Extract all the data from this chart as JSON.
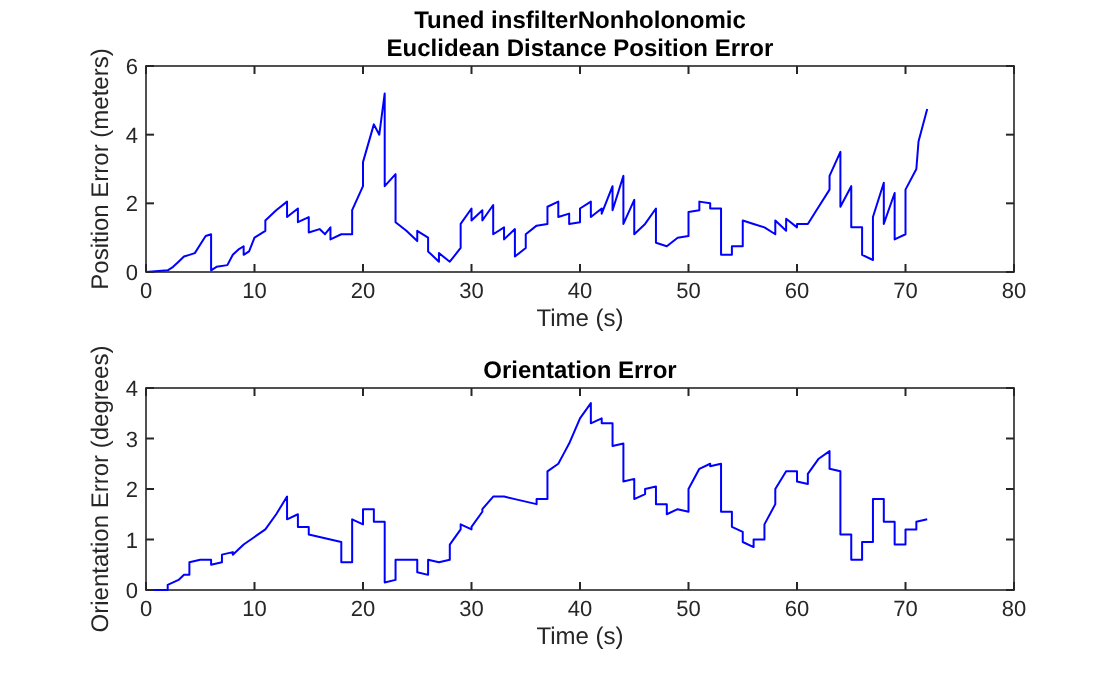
{
  "chart_data": [
    {
      "type": "line",
      "title": "Tuned insfilterNonholonomic\nEuclidean Distance Position Error",
      "xlabel": "Time (s)",
      "ylabel": "Position Error (meters)",
      "xlim": [
        0,
        80
      ],
      "xticks": [
        0,
        10,
        20,
        30,
        40,
        50,
        60,
        70,
        80
      ],
      "ylim": [
        0,
        6
      ],
      "yticks": [
        0,
        2,
        4,
        6
      ],
      "grid": false,
      "legend": false,
      "series": [
        {
          "color": "#0000ff",
          "x": [
            0,
            2,
            2.5,
            3,
            3.5,
            4,
            4.5,
            5,
            5.5,
            6,
            6,
            6.5,
            7.5,
            8,
            8.5,
            9,
            9,
            9.5,
            10,
            11,
            11,
            12,
            13,
            13,
            14,
            14,
            15,
            15,
            16,
            16.5,
            17,
            17,
            18,
            19,
            19,
            20,
            20,
            21,
            21.5,
            22,
            22,
            23,
            23,
            24,
            25,
            25,
            26,
            26,
            27,
            27,
            28,
            29,
            29,
            30,
            30,
            31,
            31,
            32,
            32,
            33,
            33,
            34,
            34,
            35,
            35,
            36,
            37,
            37,
            38,
            38,
            39,
            39,
            40,
            40,
            41,
            41,
            42,
            42,
            43,
            43,
            44,
            44,
            45,
            45,
            46,
            47,
            47,
            48,
            49,
            50,
            50,
            51,
            51,
            52,
            52,
            53,
            53,
            54,
            54,
            55,
            55,
            56,
            57,
            58,
            58,
            59,
            59,
            60,
            60,
            61,
            62,
            63,
            63,
            64,
            64,
            65,
            65,
            66,
            66,
            67,
            67,
            68,
            68,
            69,
            69,
            70,
            70,
            71,
            71.2,
            72
          ],
          "values": [
            0,
            0.05,
            0.15,
            0.3,
            0.45,
            0.5,
            0.55,
            0.8,
            1.05,
            1.1,
            0.05,
            0.15,
            0.2,
            0.5,
            0.65,
            0.75,
            0.5,
            0.6,
            1.0,
            1.2,
            1.5,
            1.8,
            2.05,
            1.6,
            1.85,
            1.45,
            1.6,
            1.15,
            1.25,
            1.1,
            1.3,
            0.95,
            1.1,
            1.1,
            1.8,
            2.5,
            3.2,
            4.3,
            4.0,
            5.2,
            2.5,
            2.85,
            1.45,
            1.2,
            0.9,
            1.2,
            1.0,
            0.6,
            0.3,
            0.55,
            0.3,
            0.7,
            1.4,
            1.85,
            1.5,
            1.8,
            1.5,
            1.95,
            1.1,
            1.3,
            0.95,
            1.25,
            0.45,
            0.7,
            1.1,
            1.35,
            1.4,
            1.9,
            2.05,
            1.6,
            1.7,
            1.4,
            1.45,
            1.85,
            2.05,
            1.6,
            1.85,
            1.7,
            2.5,
            1.8,
            2.8,
            1.4,
            2.1,
            1.1,
            1.4,
            1.85,
            0.85,
            0.75,
            1.0,
            1.05,
            1.75,
            1.8,
            2.05,
            2.0,
            1.85,
            1.85,
            0.5,
            0.5,
            0.75,
            0.75,
            1.5,
            1.4,
            1.3,
            1.1,
            1.5,
            1.2,
            1.55,
            1.3,
            1.4,
            1.4,
            1.9,
            2.4,
            2.8,
            3.5,
            1.9,
            2.5,
            1.3,
            1.3,
            0.5,
            0.35,
            1.6,
            2.6,
            1.4,
            2.3,
            0.95,
            1.1,
            2.4,
            3.0,
            3.8,
            4.75
          ]
        }
      ]
    },
    {
      "type": "line",
      "title": "Orientation Error",
      "xlabel": "Time (s)",
      "ylabel": "Orientation Error (degrees)",
      "xlim": [
        0,
        80
      ],
      "xticks": [
        0,
        10,
        20,
        30,
        40,
        50,
        60,
        70,
        80
      ],
      "ylim": [
        0,
        4
      ],
      "yticks": [
        0,
        1,
        2,
        3,
        4
      ],
      "grid": false,
      "legend": false,
      "series": [
        {
          "color": "#0000ff",
          "x": [
            0,
            2,
            2,
            3,
            3.5,
            4,
            4,
            5,
            6,
            6,
            7,
            7,
            8,
            8,
            9,
            10,
            11,
            12,
            13,
            13,
            14,
            14,
            15,
            15,
            16,
            17,
            18,
            18,
            19,
            19,
            20,
            20,
            21,
            21,
            22,
            22,
            23,
            23,
            24,
            25,
            25,
            26,
            26,
            27,
            28,
            28,
            29,
            29,
            30,
            30,
            31,
            31,
            32,
            33,
            34,
            35,
            36,
            36,
            37,
            37,
            38,
            38.5,
            39,
            40,
            41,
            41,
            42,
            42,
            43,
            43,
            44,
            44,
            45,
            45,
            46,
            46,
            47,
            47,
            48,
            48,
            49,
            50,
            50,
            51,
            52,
            52,
            53,
            53,
            54,
            54,
            55,
            55,
            56,
            56,
            57,
            57,
            58,
            58,
            59,
            60,
            60,
            61,
            61,
            62,
            63,
            63,
            64,
            64,
            65,
            65,
            66,
            66,
            67,
            67,
            68,
            68,
            69,
            69,
            70,
            70,
            71,
            71,
            72
          ],
          "values": [
            0,
            0,
            0.1,
            0.2,
            0.3,
            0.3,
            0.55,
            0.6,
            0.6,
            0.5,
            0.55,
            0.7,
            0.75,
            0.7,
            0.9,
            1.05,
            1.2,
            1.5,
            1.85,
            1.4,
            1.5,
            1.25,
            1.25,
            1.1,
            1.05,
            1.0,
            0.95,
            0.55,
            0.55,
            1.4,
            1.3,
            1.6,
            1.6,
            1.35,
            1.35,
            0.15,
            0.2,
            0.6,
            0.6,
            0.6,
            0.35,
            0.3,
            0.6,
            0.55,
            0.6,
            0.9,
            1.2,
            1.3,
            1.2,
            1.25,
            1.55,
            1.6,
            1.85,
            1.85,
            1.8,
            1.75,
            1.7,
            1.8,
            1.8,
            2.35,
            2.5,
            2.7,
            2.9,
            3.4,
            3.7,
            3.3,
            3.4,
            3.3,
            3.3,
            2.85,
            2.9,
            2.15,
            2.2,
            1.8,
            1.9,
            2.0,
            2.05,
            1.7,
            1.7,
            1.5,
            1.6,
            1.55,
            2.0,
            2.4,
            2.5,
            2.45,
            2.5,
            1.55,
            1.55,
            1.25,
            1.15,
            0.95,
            0.85,
            1.0,
            1.0,
            1.3,
            1.7,
            2.0,
            2.35,
            2.35,
            2.15,
            2.1,
            2.3,
            2.6,
            2.75,
            2.4,
            2.35,
            1.1,
            1.1,
            0.6,
            0.6,
            0.95,
            0.95,
            1.8,
            1.8,
            1.35,
            1.35,
            0.9,
            0.9,
            1.2,
            1.2,
            1.35,
            1.4
          ]
        }
      ]
    }
  ]
}
